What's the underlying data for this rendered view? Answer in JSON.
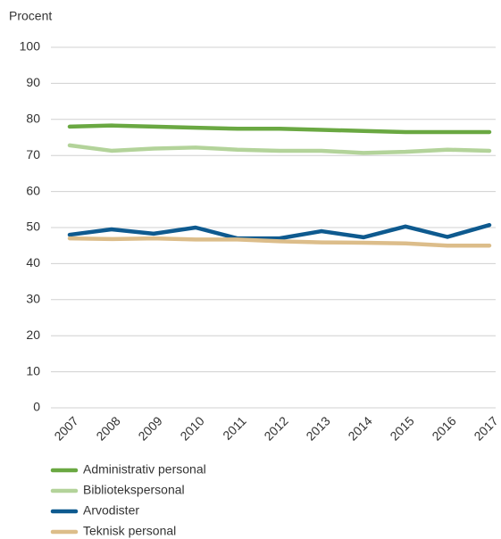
{
  "chart_data": {
    "type": "line",
    "y_label": "Procent",
    "categories": [
      "2007",
      "2008",
      "2009",
      "2010",
      "2011",
      "2012",
      "2013",
      "2014",
      "2015",
      "2016",
      "2017"
    ],
    "series": [
      {
        "name": "Administrativ personal",
        "color": "#6aa842",
        "values": [
          78.0,
          78.3,
          78.0,
          77.7,
          77.4,
          77.4,
          77.1,
          76.8,
          76.5,
          76.5,
          76.5
        ]
      },
      {
        "name": "Bibliotekspersonal",
        "color": "#b3d39a",
        "values": [
          72.8,
          71.3,
          71.9,
          72.2,
          71.6,
          71.3,
          71.3,
          70.7,
          71.0,
          71.6,
          71.3
        ]
      },
      {
        "name": "Arvodister",
        "color": "#0e5a8f",
        "values": [
          48.0,
          49.5,
          48.3,
          50.0,
          47.0,
          47.0,
          49.0,
          47.3,
          50.3,
          47.4,
          50.7
        ]
      },
      {
        "name": "Teknisk personal",
        "color": "#dcbd8a",
        "values": [
          47.0,
          46.8,
          47.0,
          46.7,
          46.7,
          46.2,
          45.9,
          45.8,
          45.6,
          45.0,
          45.0
        ]
      }
    ],
    "ylim": [
      0,
      100
    ],
    "yticks": [
      0,
      10,
      20,
      30,
      40,
      50,
      60,
      70,
      80,
      90,
      100
    ],
    "grid": true
  }
}
